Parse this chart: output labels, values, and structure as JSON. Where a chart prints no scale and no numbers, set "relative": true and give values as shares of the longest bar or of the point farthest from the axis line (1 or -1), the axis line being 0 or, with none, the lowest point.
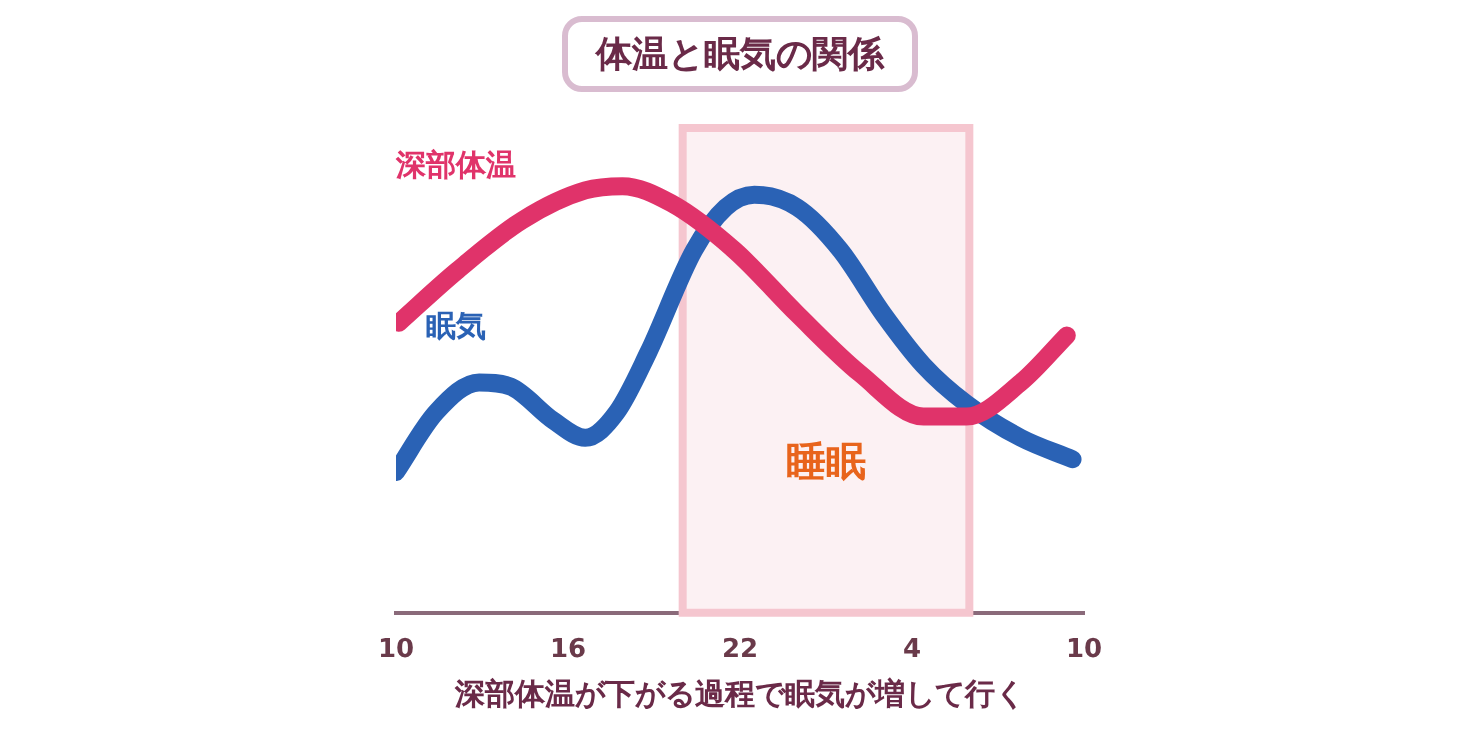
{
  "chart_data": {
    "type": "line",
    "title": "体温と眠気の関係",
    "xlabel": "深部体温が下がる過程で眠気が増して行く",
    "relative": true,
    "legend": false,
    "grid": false,
    "marker": "none",
    "line_style": "solid",
    "xlim": [
      "--01-01T10:00",
      "--01-02T10:00"
    ],
    "xticks": [
      {
        "value": "--01-01T10:00",
        "label": "10"
      },
      {
        "value": "--01-01T16:00",
        "label": "16"
      },
      {
        "value": "--01-01T22:00",
        "label": "22"
      },
      {
        "value": "--01-02T04:00",
        "label": "4"
      },
      {
        "value": "--01-02T10:00",
        "label": "10"
      }
    ],
    "series": [
      {
        "name": "深部体温",
        "color": "#e0336a",
        "x": [
          "--01-01T10:06",
          "--01-01T12:06",
          "--01-01T14:24",
          "--01-01T16:36",
          "--01-01T17:54",
          "--01-01T19:36",
          "--01-01T21:48",
          "--01-02T00:00",
          "--01-02T02:12",
          "--01-02T04:24",
          "--01-02T05:54",
          "--01-02T07:48",
          "--01-02T09:24"
        ],
        "values": [
          0.68,
          0.8,
          0.92,
          0.99,
          1.0,
          0.96,
          0.85,
          0.7,
          0.56,
          0.46,
          0.46,
          0.54,
          0.65
        ]
      },
      {
        "name": "眠気",
        "color": "#2a62b5",
        "x": [
          "--01-01T10:00",
          "--01-01T11:24",
          "--01-01T12:54",
          "--01-01T14:00",
          "--01-01T15:30",
          "--01-01T16:36",
          "--01-01T17:42",
          "--01-01T18:48",
          "--01-01T20:24",
          "--01-01T21:30",
          "--01-01T22:30",
          "--01-02T00:00",
          "--01-02T01:30",
          "--01-02T03:00",
          "--01-02T04:24",
          "--01-02T05:54",
          "--01-02T07:48",
          "--01-02T09:36"
        ],
        "values": [
          0.33,
          0.47,
          0.54,
          0.53,
          0.45,
          0.41,
          0.47,
          0.61,
          0.85,
          0.95,
          0.98,
          0.95,
          0.85,
          0.7,
          0.58,
          0.49,
          0.41,
          0.36
        ]
      }
    ],
    "bands": [
      {
        "axis": "x",
        "from": "--01-01T20:00",
        "to": "--01-02T06:00",
        "label": "睡眠",
        "color": "#f5c6cf"
      }
    ]
  }
}
